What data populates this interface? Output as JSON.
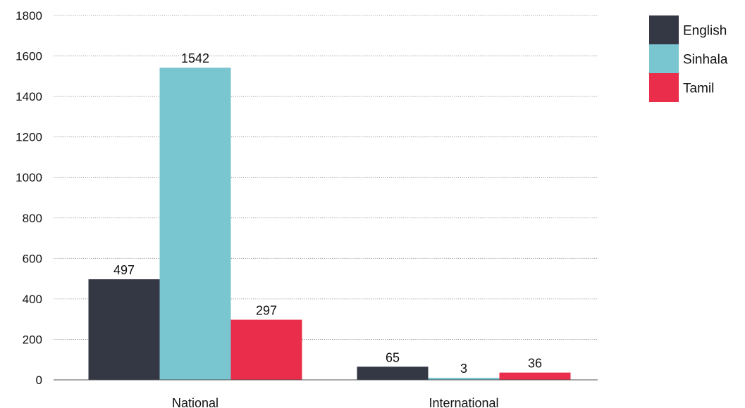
{
  "chart_data": {
    "type": "bar",
    "categories": [
      "National",
      "International"
    ],
    "series": [
      {
        "name": "English",
        "values": [
          497,
          65
        ],
        "color": "#343845"
      },
      {
        "name": "Sinhala",
        "values": [
          1542,
          3
        ],
        "color": "#79c5d0"
      },
      {
        "name": "Tamil",
        "values": [
          297,
          36
        ],
        "color": "#ea2d4b"
      }
    ],
    "data_labels": [
      [
        "497",
        "65"
      ],
      [
        "1542",
        "3"
      ],
      [
        "297",
        "36"
      ]
    ],
    "ylim": [
      0,
      1800
    ],
    "yticks": [
      0,
      200,
      400,
      600,
      800,
      1000,
      1200,
      1400,
      1600,
      1800
    ],
    "grid": true,
    "legend_position": "top-right",
    "title": "",
    "xlabel": "",
    "ylabel": ""
  }
}
